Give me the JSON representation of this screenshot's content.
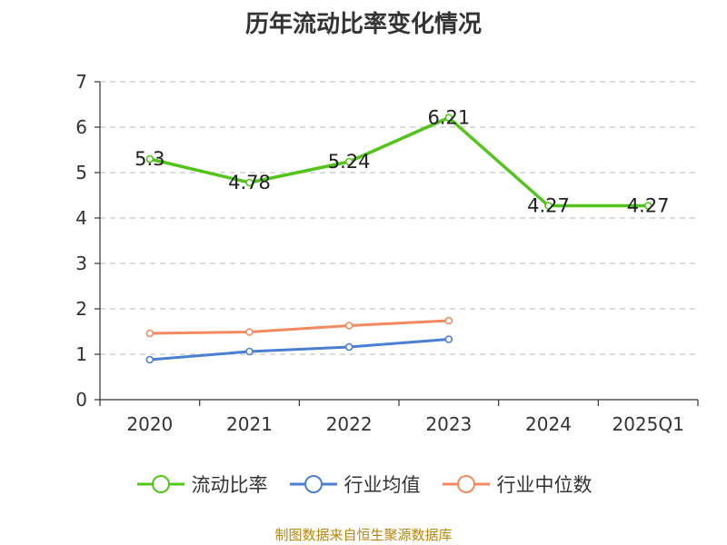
{
  "chart_data": {
    "type": "line",
    "title": "历年流动比率变化情况",
    "categories": [
      "2020",
      "2021",
      "2022",
      "2023",
      "2024",
      "2025Q1"
    ],
    "ylim": [
      0,
      7
    ],
    "yticks": [
      0,
      1,
      2,
      3,
      4,
      5,
      6,
      7
    ],
    "grid": true,
    "legend_position": "bottom",
    "series": [
      {
        "name": "流动比率",
        "color": "#52c41a",
        "values": [
          5.3,
          4.78,
          5.24,
          6.21,
          4.27,
          4.27
        ],
        "labels": [
          "5.3",
          "4.78",
          "5.24",
          "6.21",
          "4.27",
          "4.27"
        ],
        "show_labels": true
      },
      {
        "name": "行业均值",
        "color": "#4a7fd4",
        "values": [
          0.88,
          1.06,
          1.16,
          1.33,
          null,
          null
        ],
        "show_labels": false
      },
      {
        "name": "行业中位数",
        "color": "#f4895f",
        "values": [
          1.46,
          1.49,
          1.63,
          1.74,
          null,
          null
        ],
        "show_labels": false
      }
    ]
  },
  "source_note": "制图数据来自恒生聚源数据库"
}
